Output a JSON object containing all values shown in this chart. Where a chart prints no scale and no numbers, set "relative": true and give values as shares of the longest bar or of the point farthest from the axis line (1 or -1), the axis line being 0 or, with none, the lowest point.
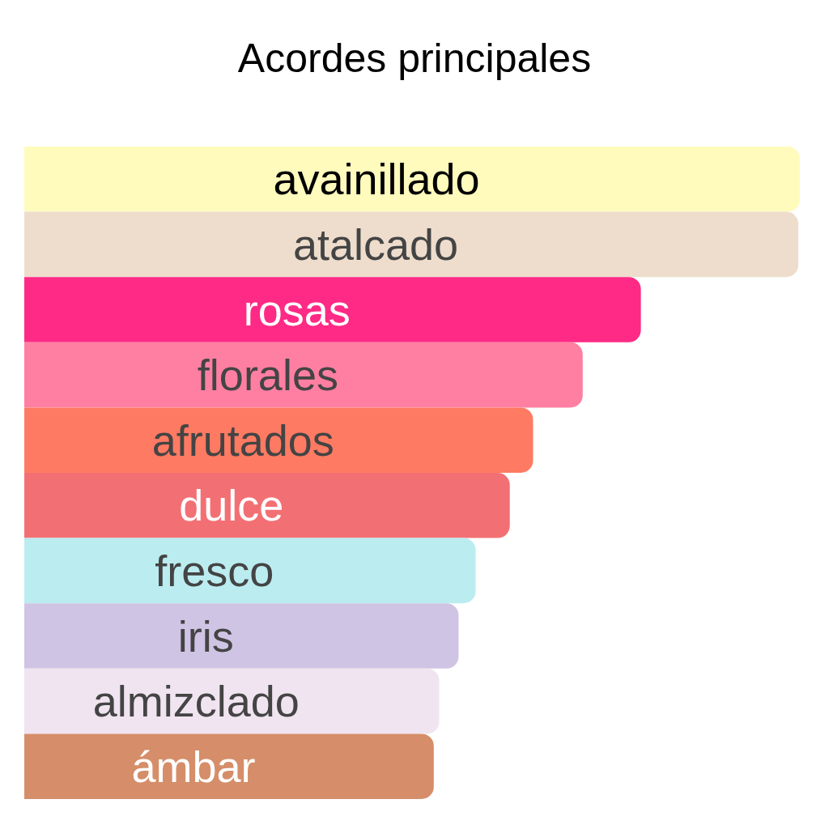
{
  "chart_data": {
    "type": "bar",
    "orientation": "horizontal",
    "relative": true,
    "title": "Acordes principales",
    "categories": [
      "avainillado",
      "atalcado",
      "rosas",
      "florales",
      "afrutados",
      "dulce",
      "fresco",
      "iris",
      "almizclado",
      "ámbar"
    ],
    "values": [
      1,
      0.998,
      0.795,
      0.72,
      0.656,
      0.626,
      0.582,
      0.56,
      0.535,
      0.528
    ],
    "colors": [
      "#fffbbd",
      "#eeddcc",
      "#ff2a85",
      "#ff7fa3",
      "#ff7a62",
      "#f27074",
      "#bbecf0",
      "#d0c4e4",
      "#f0e4f0",
      "#d58e69"
    ]
  }
}
